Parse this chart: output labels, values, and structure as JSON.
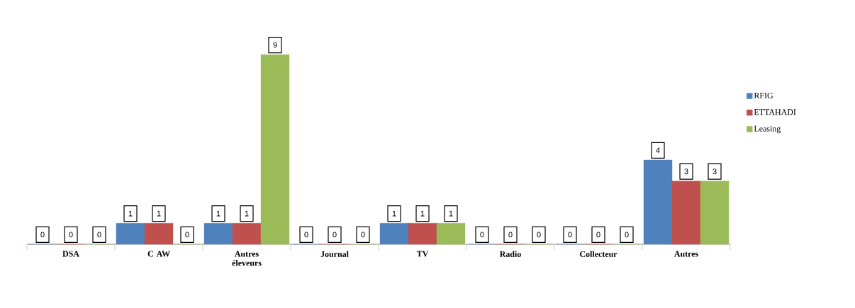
{
  "chart_data": {
    "type": "bar",
    "data_labels": true,
    "legend": "right",
    "categories": [
      "DSA",
      "C AW",
      "Autres éleveurs",
      "Journal",
      "TV",
      "Radio",
      "Collecteur",
      "Autres"
    ],
    "series": [
      {
        "name": "RFIG",
        "color": "#4f81bd",
        "values": [
          0,
          1,
          1,
          0,
          1,
          0,
          0,
          4
        ]
      },
      {
        "name": "ETTAHADI",
        "color": "#c0504d",
        "values": [
          0,
          1,
          1,
          0,
          1,
          0,
          0,
          3
        ]
      },
      {
        "name": "Leasing",
        "color": "#9bbb59",
        "values": [
          0,
          0,
          9,
          0,
          1,
          0,
          0,
          3
        ]
      }
    ]
  }
}
